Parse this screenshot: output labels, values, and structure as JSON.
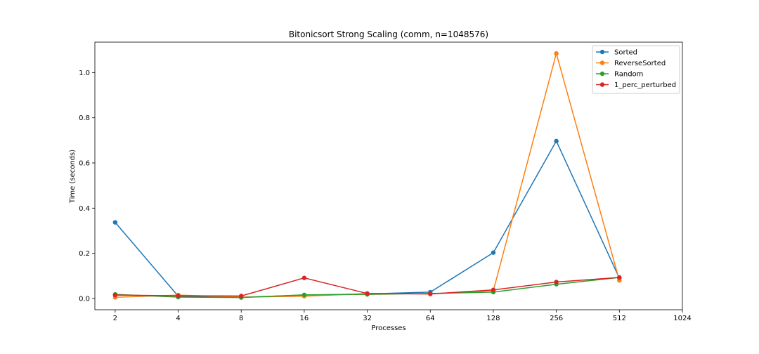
{
  "chart_data": {
    "type": "line",
    "title": "Bitonicsort Strong Scaling (comm, n=1048576)",
    "xlabel": "Processes",
    "ylabel": "Time (seconds)",
    "x_scale": "log2",
    "x_ticks": [
      2,
      4,
      8,
      16,
      32,
      64,
      128,
      256,
      512,
      1024
    ],
    "xlim": [
      1.6,
      1024
    ],
    "y_ticks": [
      0.0,
      0.2,
      0.4,
      0.6,
      0.8,
      1.0
    ],
    "ylim": [
      -0.05,
      1.135
    ],
    "grid": false,
    "legend_position": "top-right",
    "x": [
      2,
      4,
      8,
      16,
      32,
      64,
      128,
      256,
      512
    ],
    "series": [
      {
        "name": "Sorted",
        "color": "#1f77b4",
        "values": [
          0.337,
          0.01,
          0.005,
          0.015,
          0.02,
          0.028,
          0.203,
          0.697,
          0.09
        ]
      },
      {
        "name": "ReverseSorted",
        "color": "#ff7f0e",
        "values": [
          0.005,
          0.015,
          0.006,
          0.01,
          0.022,
          0.02,
          0.035,
          1.085,
          0.08
        ]
      },
      {
        "name": "Random",
        "color": "#2ca02c",
        "values": [
          0.018,
          0.006,
          0.004,
          0.016,
          0.018,
          0.022,
          0.028,
          0.063,
          0.093
        ]
      },
      {
        "name": "1_perc_perturbed",
        "color": "#d62728",
        "values": [
          0.015,
          0.012,
          0.011,
          0.091,
          0.022,
          0.02,
          0.038,
          0.073,
          0.093
        ]
      }
    ]
  }
}
